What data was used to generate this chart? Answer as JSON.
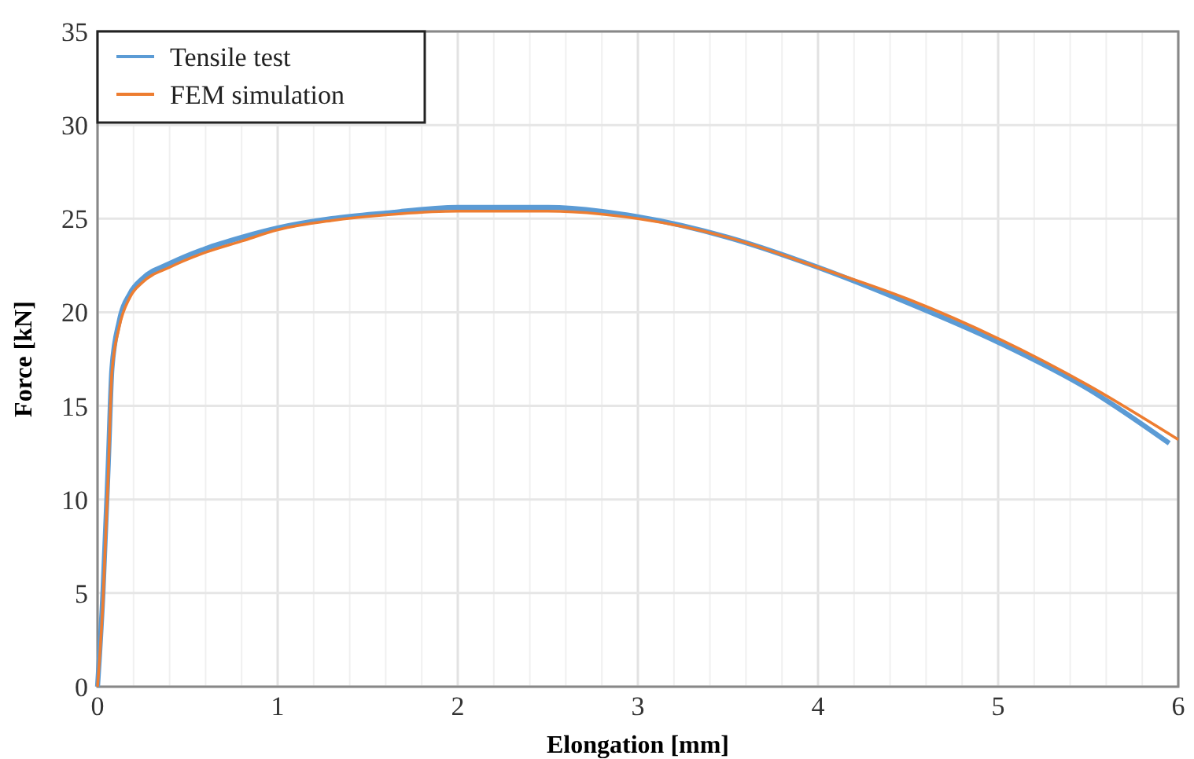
{
  "chart_data": {
    "type": "line",
    "xlabel": "Elongation [mm]",
    "ylabel": "Force [kN]",
    "xlim": [
      0,
      6
    ],
    "ylim": [
      0,
      35
    ],
    "xticks": [
      0,
      {
        "value": 0.2,
        "label": null
      },
      {
        "value": 0.4,
        "label": null
      },
      {
        "value": 0.6,
        "label": null
      },
      {
        "value": 0.8,
        "label": null
      },
      1,
      {
        "value": 1.2,
        "label": null
      },
      {
        "value": 1.4,
        "label": null
      },
      {
        "value": 1.6,
        "label": null
      },
      {
        "value": 1.8,
        "label": null
      },
      2,
      {
        "value": 2.2,
        "label": null
      },
      {
        "value": 2.4,
        "label": null
      },
      {
        "value": 2.6,
        "label": null
      },
      {
        "value": 2.8,
        "label": null
      },
      3,
      {
        "value": 3.2,
        "label": null
      },
      {
        "value": 3.4,
        "label": null
      },
      {
        "value": 3.6,
        "label": null
      },
      {
        "value": 3.8,
        "label": null
      },
      4,
      {
        "value": 4.2,
        "label": null
      },
      {
        "value": 4.4,
        "label": null
      },
      {
        "value": 4.6,
        "label": null
      },
      {
        "value": 4.8,
        "label": null
      },
      5,
      {
        "value": 5.2,
        "label": null
      },
      {
        "value": 5.4,
        "label": null
      },
      {
        "value": 5.6,
        "label": null
      },
      {
        "value": 5.8,
        "label": null
      },
      6
    ],
    "yticks": [
      0,
      5,
      10,
      15,
      20,
      25,
      30,
      35
    ],
    "grid": true,
    "legend": "top left",
    "marker": "none",
    "line_style": "solid",
    "series": [
      {
        "name": "Tensile test",
        "color": "#5b9bd5",
        "x": [
          0,
          0.03,
          0.06,
          0.08,
          0.12,
          0.18,
          0.25,
          0.4,
          0.6,
          0.8,
          1,
          1.3,
          1.6,
          2,
          2.5,
          3,
          3.5,
          4,
          4.5,
          5,
          5.5,
          5.95
        ],
        "values": [
          0,
          5,
          12,
          17,
          19.5,
          21,
          21.8,
          22.6,
          23.4,
          24,
          24.5,
          25,
          25.3,
          25.6,
          25.6,
          25.1,
          24,
          22.4,
          20.5,
          18.4,
          15.9,
          13
        ]
      },
      {
        "name": "FEM simulation",
        "color": "#ed7d31",
        "x": [
          0,
          0.03,
          0.06,
          0.08,
          0.12,
          0.18,
          0.25,
          0.4,
          0.6,
          0.8,
          1,
          1.3,
          1.6,
          2,
          2.5,
          3,
          3.5,
          4,
          4.5,
          5,
          5.5,
          6
        ],
        "values": [
          0,
          4.5,
          11.5,
          16.8,
          19.2,
          20.8,
          21.6,
          22.4,
          23.2,
          23.8,
          24.4,
          24.9,
          25.2,
          25.4,
          25.4,
          25,
          24,
          22.4,
          20.7,
          18.6,
          16.1,
          13.2
        ]
      }
    ]
  }
}
